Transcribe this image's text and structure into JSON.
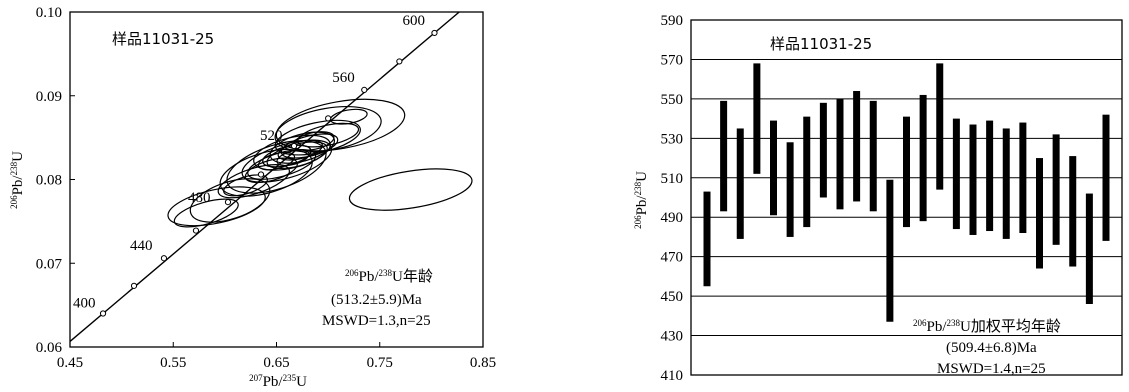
{
  "chart_data": [
    {
      "type": "scatter",
      "subtype": "concordia",
      "sample_label": "样品11031-25",
      "xlabel": "207Pb/235U",
      "ylabel": "206Pb/238U",
      "xlim": [
        0.45,
        0.85
      ],
      "ylim": [
        0.06,
        0.1
      ],
      "x_ticks": [
        "0.45",
        "0.55",
        "0.65",
        "0.75",
        "0.85"
      ],
      "y_ticks": [
        "0.06",
        "0.07",
        "0.08",
        "0.09",
        "0.10"
      ],
      "concordia_ages": [
        {
          "age": "400",
          "x": 0.482,
          "y": 0.064
        },
        {
          "age": "440",
          "x": 0.541,
          "y": 0.0706
        },
        {
          "age": "480",
          "x": 0.603,
          "y": 0.0773
        },
        {
          "age": "520",
          "x": 0.667,
          "y": 0.084
        },
        {
          "age": "560",
          "x": 0.735,
          "y": 0.0907
        },
        {
          "age": "600",
          "x": 0.803,
          "y": 0.0975
        }
      ],
      "concordia_points": [
        {
          "x": 0.512,
          "y": 0.0673
        },
        {
          "x": 0.572,
          "y": 0.0739
        },
        {
          "x": 0.635,
          "y": 0.0806
        },
        {
          "x": 0.7,
          "y": 0.0873
        },
        {
          "x": 0.769,
          "y": 0.0941
        }
      ],
      "ellipses": [
        {
          "x": 0.605,
          "y": 0.0775,
          "a": 0.04,
          "b": 0.0022,
          "angle_deg": 18
        },
        {
          "x": 0.64,
          "y": 0.0808,
          "a": 0.046,
          "b": 0.0024,
          "angle_deg": 16
        },
        {
          "x": 0.65,
          "y": 0.0815,
          "a": 0.05,
          "b": 0.0026,
          "angle_deg": 18
        },
        {
          "x": 0.665,
          "y": 0.0832,
          "a": 0.038,
          "b": 0.0018,
          "angle_deg": 14
        },
        {
          "x": 0.66,
          "y": 0.0822,
          "a": 0.045,
          "b": 0.002,
          "angle_deg": 17
        },
        {
          "x": 0.675,
          "y": 0.0838,
          "a": 0.032,
          "b": 0.0016,
          "angle_deg": 15
        },
        {
          "x": 0.69,
          "y": 0.085,
          "a": 0.042,
          "b": 0.0018,
          "angle_deg": 12
        },
        {
          "x": 0.7,
          "y": 0.086,
          "a": 0.052,
          "b": 0.0025,
          "angle_deg": 10
        },
        {
          "x": 0.712,
          "y": 0.0865,
          "a": 0.063,
          "b": 0.0028,
          "angle_deg": 10
        },
        {
          "x": 0.655,
          "y": 0.0818,
          "a": 0.034,
          "b": 0.0014,
          "angle_deg": 16
        },
        {
          "x": 0.67,
          "y": 0.0829,
          "a": 0.03,
          "b": 0.0013,
          "angle_deg": 15
        },
        {
          "x": 0.682,
          "y": 0.084,
          "a": 0.028,
          "b": 0.0012,
          "angle_deg": 14
        },
        {
          "x": 0.628,
          "y": 0.0798,
          "a": 0.036,
          "b": 0.0015,
          "angle_deg": 18
        },
        {
          "x": 0.645,
          "y": 0.0811,
          "a": 0.026,
          "b": 0.0012,
          "angle_deg": 16
        },
        {
          "x": 0.66,
          "y": 0.0828,
          "a": 0.024,
          "b": 0.0011,
          "angle_deg": 14
        },
        {
          "x": 0.673,
          "y": 0.0835,
          "a": 0.022,
          "b": 0.001,
          "angle_deg": 14
        },
        {
          "x": 0.686,
          "y": 0.0846,
          "a": 0.02,
          "b": 0.001,
          "angle_deg": 12
        },
        {
          "x": 0.7,
          "y": 0.0853,
          "a": 0.03,
          "b": 0.0012,
          "angle_deg": 12
        },
        {
          "x": 0.65,
          "y": 0.0822,
          "a": 0.018,
          "b": 0.0009,
          "angle_deg": 15
        },
        {
          "x": 0.62,
          "y": 0.0793,
          "a": 0.022,
          "b": 0.001,
          "angle_deg": 17
        },
        {
          "x": 0.666,
          "y": 0.0826,
          "a": 0.016,
          "b": 0.0008,
          "angle_deg": 15
        },
        {
          "x": 0.592,
          "y": 0.0768,
          "a": 0.048,
          "b": 0.002,
          "angle_deg": 12
        },
        {
          "x": 0.72,
          "y": 0.0875,
          "a": 0.018,
          "b": 0.0008,
          "angle_deg": 10
        },
        {
          "x": 0.582,
          "y": 0.076,
          "a": 0.032,
          "b": 0.0013,
          "angle_deg": 16
        },
        {
          "x": 0.78,
          "y": 0.0788,
          "a": 0.06,
          "b": 0.0022,
          "angle_deg": 9
        }
      ],
      "annotation": {
        "line1": "206Pb/238U年龄",
        "line2": "(513.2±5.9)Ma",
        "line3": "MSWD=1.3,n=25"
      }
    },
    {
      "type": "bar",
      "subtype": "weighted-mean-error-bars",
      "sample_label": "样品11031-25",
      "ylabel": "206Pb/238U",
      "ylim": [
        410,
        590
      ],
      "y_ticks": [
        "410",
        "430",
        "450",
        "470",
        "490",
        "510",
        "530",
        "550",
        "570",
        "590"
      ],
      "grid": true,
      "bars": [
        {
          "low": 455,
          "high": 503
        },
        {
          "low": 493,
          "high": 549
        },
        {
          "low": 479,
          "high": 535
        },
        {
          "low": 512,
          "high": 568
        },
        {
          "low": 491,
          "high": 539
        },
        {
          "low": 480,
          "high": 528
        },
        {
          "low": 485,
          "high": 541
        },
        {
          "low": 500,
          "high": 548
        },
        {
          "low": 494,
          "high": 550
        },
        {
          "low": 498,
          "high": 554
        },
        {
          "low": 493,
          "high": 549
        },
        {
          "low": 437,
          "high": 509
        },
        {
          "low": 485,
          "high": 541
        },
        {
          "low": 488,
          "high": 552
        },
        {
          "low": 504,
          "high": 568
        },
        {
          "low": 484,
          "high": 540
        },
        {
          "low": 481,
          "high": 537
        },
        {
          "low": 483,
          "high": 539
        },
        {
          "low": 479,
          "high": 535
        },
        {
          "low": 482,
          "high": 538
        },
        {
          "low": 464,
          "high": 520
        },
        {
          "low": 476,
          "high": 532
        },
        {
          "low": 465,
          "high": 521
        },
        {
          "low": 446,
          "high": 502
        },
        {
          "low": 478,
          "high": 542
        }
      ],
      "annotation": {
        "line1": "206Pb/238U加权平均年龄",
        "line2": "(509.4±6.8)Ma",
        "line3": "MSWD=1.4,n=25"
      }
    }
  ]
}
